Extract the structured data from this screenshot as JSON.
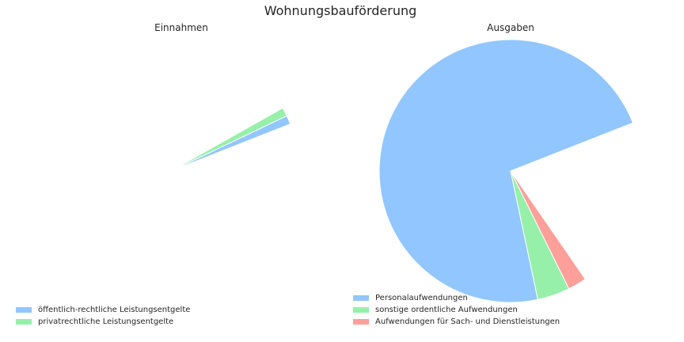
{
  "chart_data": {
    "type": "pie",
    "title": "Wohnungsbauförderung",
    "charts": [
      {
        "title": "Einnahmen",
        "slices": [
          {
            "label": "öffentlich-rechtliche Leistungsentgelte",
            "share": 0.011,
            "color": "#92c6ff"
          },
          {
            "label": "privatrechtliche Leistungsentgelte",
            "share": 0.011,
            "color": "#97f0aa"
          }
        ]
      },
      {
        "title": "Ausgaben",
        "slices": [
          {
            "label": "Personalaufwendungen",
            "share": 0.7235,
            "color": "#92c6ff"
          },
          {
            "label": "sonstige ordentliche Aufwendungen",
            "share": 0.04,
            "color": "#97f0aa"
          },
          {
            "label": "Aufwendungen für Sach- und Dienstleistungen",
            "share": 0.023,
            "color": "#ff9f9a"
          }
        ]
      }
    ]
  }
}
